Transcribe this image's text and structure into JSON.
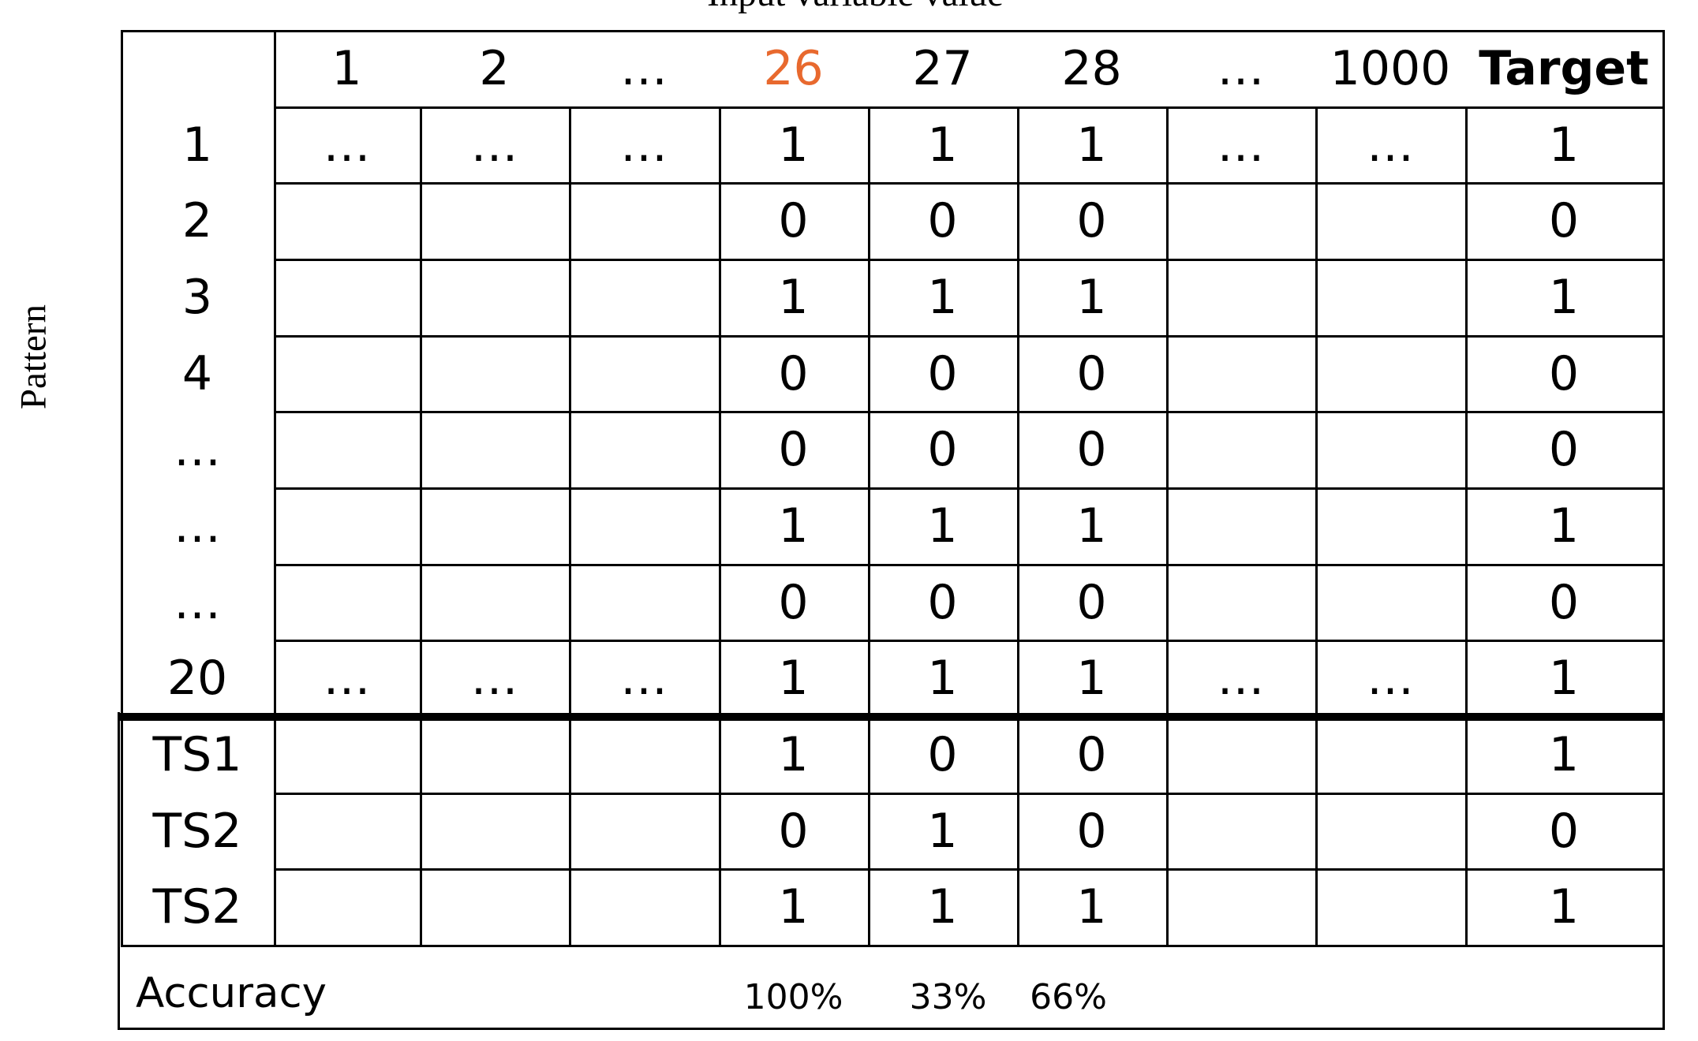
{
  "title": "Input variable value",
  "y_axis_label": "Pattern",
  "colors": {
    "highlight": "#E8692E",
    "ink": "#000000"
  },
  "column_headers": [
    {
      "text": "1"
    },
    {
      "text": "2"
    },
    {
      "text": "…"
    },
    {
      "text": "26",
      "highlight": true
    },
    {
      "text": "27"
    },
    {
      "text": "28"
    },
    {
      "text": "…"
    },
    {
      "text": "1000"
    },
    {
      "text": "Target",
      "bold": true
    }
  ],
  "rows": [
    {
      "label": "1",
      "cells": [
        "…",
        "…",
        "…",
        "1",
        "1",
        "1",
        "…",
        "…",
        "1"
      ]
    },
    {
      "label": "2",
      "cells": [
        "",
        "",
        "",
        "0",
        "0",
        "0",
        "",
        "",
        "0"
      ]
    },
    {
      "label": "3",
      "cells": [
        "",
        "",
        "",
        "1",
        "1",
        "1",
        "",
        "",
        "1"
      ]
    },
    {
      "label": "4",
      "cells": [
        "",
        "",
        "",
        "0",
        "0",
        "0",
        "",
        "",
        "0"
      ]
    },
    {
      "label": "…",
      "cells": [
        "",
        "",
        "",
        "0",
        "0",
        "0",
        "",
        "",
        "0"
      ]
    },
    {
      "label": "…",
      "cells": [
        "",
        "",
        "",
        "1",
        "1",
        "1",
        "",
        "",
        "1"
      ]
    },
    {
      "label": "…",
      "cells": [
        "",
        "",
        "",
        "0",
        "0",
        "0",
        "",
        "",
        "0"
      ]
    },
    {
      "label": "20",
      "cells": [
        "…",
        "…",
        "…",
        "1",
        "1",
        "1",
        "…",
        "…",
        "1"
      ]
    },
    {
      "label": "TS1",
      "cells": [
        "",
        "",
        "",
        "1",
        "0",
        "0",
        "",
        "",
        "1"
      ]
    },
    {
      "label": "TS2",
      "cells": [
        "",
        "",
        "",
        "0",
        "1",
        "0",
        "",
        "",
        "0"
      ]
    },
    {
      "label": "TS2",
      "cells": [
        "",
        "",
        "",
        "1",
        "1",
        "1",
        "",
        "",
        "1"
      ]
    }
  ],
  "accuracy": {
    "label": "Accuracy",
    "values": [
      "100%",
      "33%",
      "66%"
    ]
  }
}
